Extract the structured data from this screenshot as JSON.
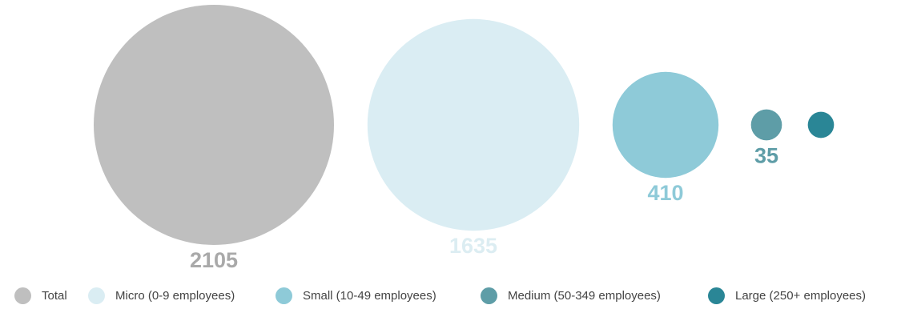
{
  "chart_data": {
    "type": "bubble",
    "title": "",
    "categories": [
      "Total",
      "Micro (0-9 employees)",
      "Small (10-49 employees)",
      "Medium (50-349 employees)",
      "Large (250+ employees)"
    ],
    "values": [
      2105,
      1635,
      410,
      35,
      25
    ],
    "value_labels": [
      "2105",
      "1635",
      "410",
      "35",
      ""
    ],
    "colors": [
      "#bfbfbf",
      "#daedf3",
      "#8ecad8",
      "#5e9da7",
      "#2a8696"
    ],
    "label_colors": [
      "#a9a9a9",
      "#dcedf2",
      "#8ecad8",
      "#5e9da7",
      "#2a8696"
    ],
    "legend_position": "bottom",
    "grid": false
  }
}
